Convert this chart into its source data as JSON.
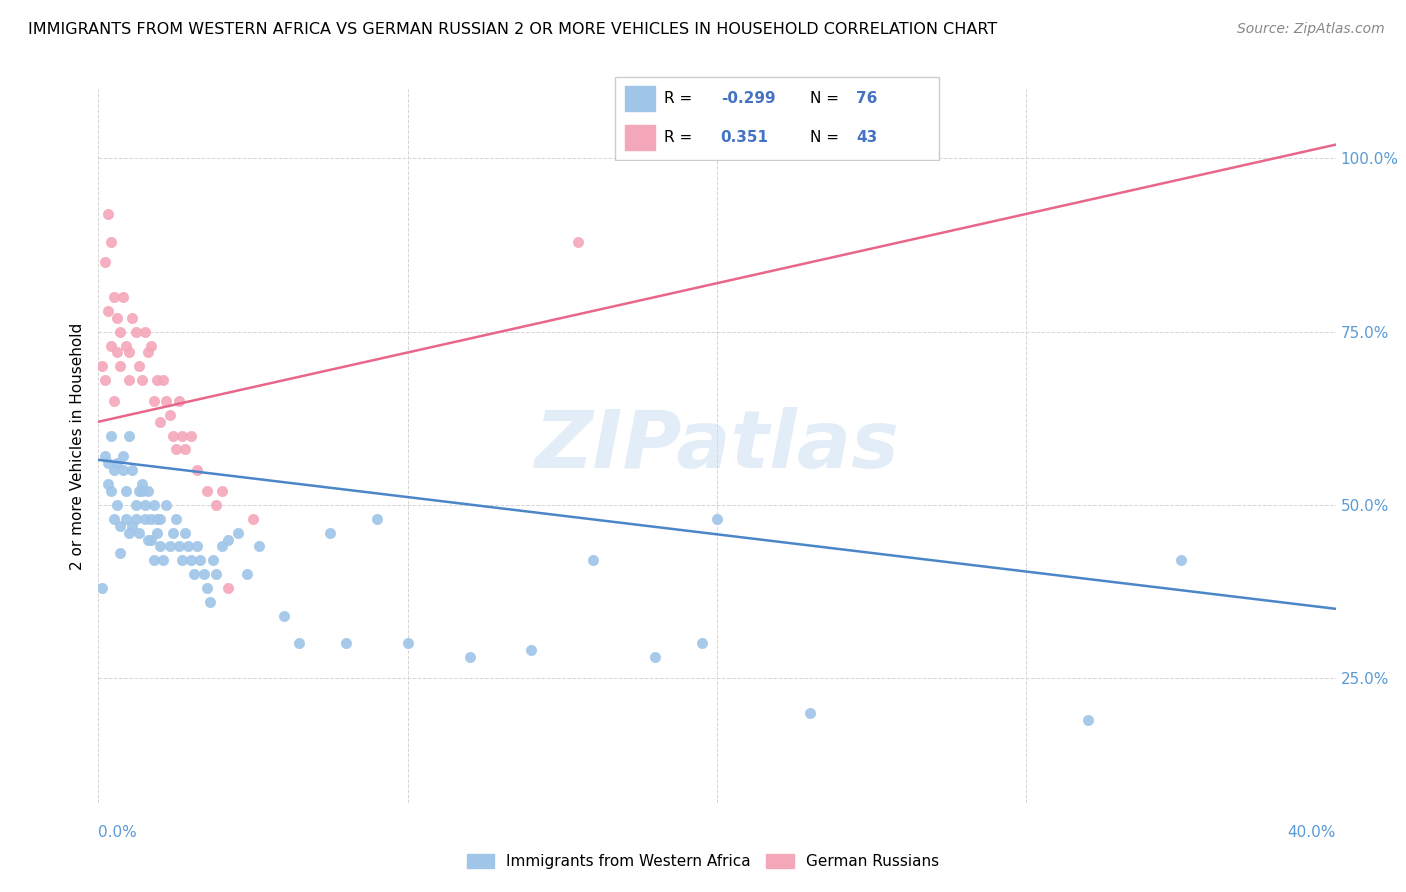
{
  "title": "IMMIGRANTS FROM WESTERN AFRICA VS GERMAN RUSSIAN 2 OR MORE VEHICLES IN HOUSEHOLD CORRELATION CHART",
  "source": "Source: ZipAtlas.com",
  "ylabel": "2 or more Vehicles in Household",
  "ytick_labels": [
    "25.0%",
    "50.0%",
    "75.0%",
    "100.0%"
  ],
  "ytick_vals": [
    0.25,
    0.5,
    0.75,
    1.0
  ],
  "xlim": [
    0.0,
    0.4
  ],
  "ylim": [
    0.07,
    1.1
  ],
  "blue_R": "-0.299",
  "blue_N": "76",
  "pink_R": "0.351",
  "pink_N": "43",
  "blue_color": "#9fc5e8",
  "pink_color": "#f4a7b9",
  "blue_line_color": "#4a86c8",
  "pink_line_color": "#e8668a",
  "watermark": "ZIPatlas",
  "legend_label_blue": "Immigrants from Western Africa",
  "legend_label_pink": "German Russians",
  "blue_line_x0": 0.0,
  "blue_line_x1": 0.4,
  "blue_line_y0": 0.565,
  "blue_line_y1": 0.35,
  "pink_line_x0": 0.0,
  "pink_line_x1": 0.4,
  "pink_line_y0": 0.62,
  "pink_line_y1": 1.02,
  "blue_scatter_x": [
    0.001,
    0.002,
    0.003,
    0.003,
    0.004,
    0.004,
    0.005,
    0.005,
    0.006,
    0.006,
    0.007,
    0.007,
    0.008,
    0.008,
    0.009,
    0.009,
    0.01,
    0.01,
    0.011,
    0.011,
    0.012,
    0.012,
    0.013,
    0.013,
    0.014,
    0.014,
    0.015,
    0.015,
    0.016,
    0.016,
    0.017,
    0.017,
    0.018,
    0.018,
    0.019,
    0.019,
    0.02,
    0.02,
    0.021,
    0.022,
    0.023,
    0.024,
    0.025,
    0.026,
    0.027,
    0.028,
    0.029,
    0.03,
    0.031,
    0.032,
    0.033,
    0.034,
    0.035,
    0.036,
    0.037,
    0.038,
    0.04,
    0.042,
    0.045,
    0.048,
    0.052,
    0.06,
    0.065,
    0.075,
    0.08,
    0.09,
    0.1,
    0.12,
    0.14,
    0.16,
    0.18,
    0.195,
    0.2,
    0.23,
    0.32,
    0.35
  ],
  "blue_scatter_y": [
    0.38,
    0.57,
    0.53,
    0.56,
    0.52,
    0.6,
    0.55,
    0.48,
    0.56,
    0.5,
    0.43,
    0.47,
    0.55,
    0.57,
    0.52,
    0.48,
    0.46,
    0.6,
    0.47,
    0.55,
    0.5,
    0.48,
    0.52,
    0.46,
    0.52,
    0.53,
    0.5,
    0.48,
    0.45,
    0.52,
    0.48,
    0.45,
    0.42,
    0.5,
    0.48,
    0.46,
    0.48,
    0.44,
    0.42,
    0.5,
    0.44,
    0.46,
    0.48,
    0.44,
    0.42,
    0.46,
    0.44,
    0.42,
    0.4,
    0.44,
    0.42,
    0.4,
    0.38,
    0.36,
    0.42,
    0.4,
    0.44,
    0.45,
    0.46,
    0.4,
    0.44,
    0.34,
    0.3,
    0.46,
    0.3,
    0.48,
    0.3,
    0.28,
    0.29,
    0.42,
    0.28,
    0.3,
    0.48,
    0.2,
    0.19,
    0.42
  ],
  "pink_scatter_x": [
    0.001,
    0.002,
    0.002,
    0.003,
    0.003,
    0.004,
    0.004,
    0.005,
    0.005,
    0.006,
    0.006,
    0.007,
    0.007,
    0.008,
    0.009,
    0.01,
    0.01,
    0.011,
    0.012,
    0.013,
    0.014,
    0.015,
    0.016,
    0.017,
    0.018,
    0.019,
    0.02,
    0.021,
    0.022,
    0.023,
    0.024,
    0.025,
    0.026,
    0.027,
    0.028,
    0.03,
    0.032,
    0.035,
    0.038,
    0.04,
    0.042,
    0.05,
    0.155
  ],
  "pink_scatter_y": [
    0.7,
    0.85,
    0.68,
    0.92,
    0.78,
    0.88,
    0.73,
    0.8,
    0.65,
    0.72,
    0.77,
    0.75,
    0.7,
    0.8,
    0.73,
    0.72,
    0.68,
    0.77,
    0.75,
    0.7,
    0.68,
    0.75,
    0.72,
    0.73,
    0.65,
    0.68,
    0.62,
    0.68,
    0.65,
    0.63,
    0.6,
    0.58,
    0.65,
    0.6,
    0.58,
    0.6,
    0.55,
    0.52,
    0.5,
    0.52,
    0.38,
    0.48,
    0.88
  ]
}
